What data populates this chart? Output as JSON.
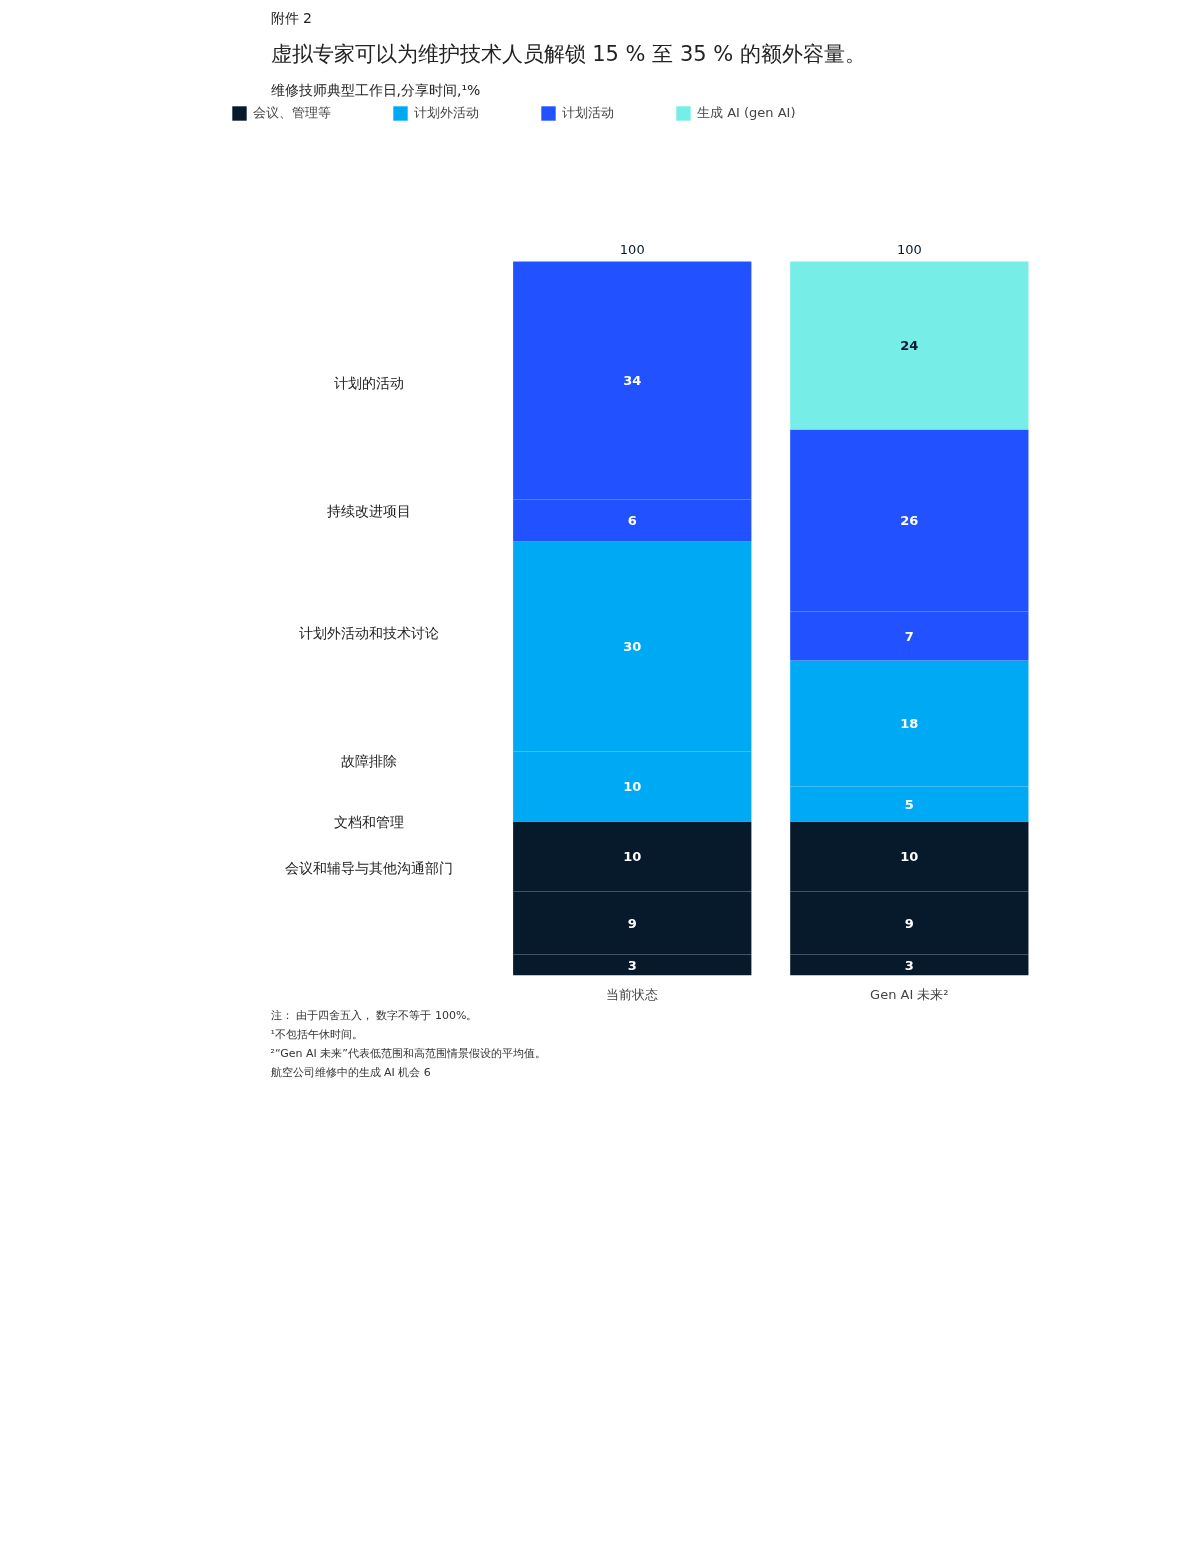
{
  "chart_data": {
    "type": "bar",
    "stacked": true,
    "title": "虚拟专家可以为维护技术人员解锁 15 % 至 35 % 的额外容量。",
    "subtitle": "维修技师典型工作日,分享时间,¹%",
    "categories": [
      "当前状态",
      "Gen AI 未来²"
    ],
    "series": [
      {
        "name": "会议、管理等",
        "color": "#071a2c",
        "values": [
          3,
          3
        ]
      },
      {
        "color": "#071a2c",
        "values": [
          9,
          9
        ]
      },
      {
        "color": "#071a2c",
        "values": [
          10,
          10
        ]
      },
      {
        "name": "计划外活动",
        "color": "#00a9f4",
        "values": [
          10,
          5
        ]
      },
      {
        "color": "#00a9f4",
        "values": [
          30,
          18
        ]
      },
      {
        "name": "计划活动",
        "color": "#2251ff",
        "values": [
          6,
          7
        ]
      },
      {
        "color": "#2251ff",
        "values": [
          34,
          26
        ]
      },
      {
        "name": "生成 AI (gen AI)",
        "color": "#76ede6",
        "values": [
          null,
          24
        ]
      }
    ],
    "data_labels": true,
    "totals": [
      "100",
      "100"
    ],
    "legend": "top",
    "annotations": [
      "附件 2",
      "计划的活动",
      "持续改进项目",
      "计划外活动和技术讨论",
      "故障排除",
      "文档和管理",
      "会议和辅导与其他沟通部门",
      "注： 由于四舍五入， 数字不等于 100%。",
      "¹不包括午休时间。",
      "²“Gen AI 未来”代表低范围和高范围情景假设的平均值。",
      "航空公司维修中的生成 AI 机会    6"
    ]
  }
}
